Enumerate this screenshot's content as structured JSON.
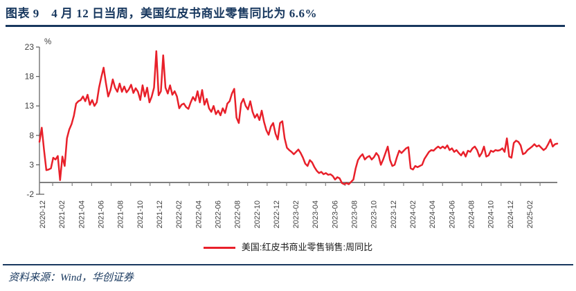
{
  "header": {
    "title": "图表 9　4 月 12 日当周，美国红皮书商业零售同比为 6.6%"
  },
  "footer": {
    "source_label": "资料来源：Wind，华创证券"
  },
  "colors": {
    "accent_navy": "#17375E",
    "series_red": "#E8202A",
    "axis_gray": "#7F7F7F",
    "yaxis_line": "#595959",
    "tick_text": "#404040"
  },
  "chart_data": {
    "type": "line",
    "title": "",
    "xlabel": "",
    "ylabel": "",
    "unit_label": "%",
    "ylim": [
      -2,
      23
    ],
    "yticks": [
      23,
      18,
      13,
      8,
      3,
      -2
    ],
    "grid": false,
    "axis_cross_y": 0,
    "legend_position": "bottom-center",
    "x_tick_labels": [
      "2020-12",
      "2021-02",
      "2021-04",
      "2021-06",
      "2021-08",
      "2021-10",
      "2021-12",
      "2022-02",
      "2022-04",
      "2022-06",
      "2022-08",
      "2022-10",
      "2022-12",
      "2023-02",
      "2023-04",
      "2023-06",
      "2023-08",
      "2023-10",
      "2023-12",
      "2024-02",
      "2024-04",
      "2024-06",
      "2024-08",
      "2024-10",
      "2024-12",
      "2025-02"
    ],
    "legend": [
      {
        "name": "美国:红皮书商业零售销售:周同比",
        "color": "#E8202A"
      }
    ],
    "series": [
      {
        "name": "美国:红皮书商业零售销售:周同比",
        "frequency": "weekly",
        "x_start": "2020-12",
        "x_end": "2025-04",
        "latest_label": "2025-04-12",
        "latest_value": 6.6,
        "values": [
          6.9,
          9.3,
          5.5,
          2.1,
          2.2,
          2.4,
          4.2,
          3.9,
          4.5,
          0.4,
          4.4,
          2.8,
          7.5,
          9.0,
          9.9,
          11.3,
          13.4,
          13.8,
          14.0,
          14.6,
          13.8,
          14.9,
          13.2,
          14.0,
          13.0,
          13.6,
          16.1,
          17.9,
          19.5,
          16.9,
          14.6,
          15.7,
          17.5,
          16.1,
          15.4,
          16.8,
          15.4,
          16.3,
          15.3,
          15.8,
          16.6,
          15.2,
          16.0,
          15.4,
          14.0,
          16.5,
          14.6,
          16.1,
          13.6,
          14.6,
          16.1,
          22.3,
          14.8,
          15.5,
          21.6,
          16.1,
          15.1,
          16.5,
          14.9,
          15.5,
          14.6,
          12.6,
          13.2,
          13.4,
          12.8,
          12.5,
          13.6,
          14.5,
          13.9,
          15.5,
          13.6,
          15.7,
          13.2,
          14.2,
          12.6,
          12.0,
          13.0,
          11.6,
          12.2,
          11.4,
          12.6,
          11.8,
          13.4,
          13.8,
          15.1,
          15.9,
          11.0,
          10.1,
          13.4,
          14.2,
          13.0,
          12.4,
          13.8,
          12.0,
          11.0,
          11.6,
          10.6,
          12.2,
          10.3,
          8.9,
          8.1,
          9.5,
          10.1,
          8.3,
          7.3,
          10.1,
          10.4,
          7.5,
          5.9,
          5.5,
          5.2,
          4.8,
          5.2,
          5.6,
          5.0,
          4.2,
          3.2,
          2.8,
          3.8,
          3.4,
          2.6,
          2.0,
          1.6,
          1.8,
          1.4,
          1.6,
          1.3,
          1.4,
          1.1,
          0.5,
          0.9,
          0.7,
          -0.1,
          -0.3,
          -0.1,
          -0.3,
          0.1,
          0.5,
          2.4,
          3.8,
          4.4,
          4.8,
          3.9,
          4.3,
          4.5,
          3.9,
          4.3,
          5.0,
          4.5,
          3.0,
          3.9,
          5.0,
          6.1,
          3.8,
          2.8,
          3.0,
          4.3,
          5.4,
          5.0,
          5.4,
          5.8,
          6.0,
          2.4,
          2.2,
          2.8,
          2.6,
          2.8,
          3.0,
          4.0,
          4.6,
          5.2,
          5.5,
          5.4,
          5.8,
          6.1,
          5.8,
          6.1,
          5.8,
          6.3,
          5.5,
          5.8,
          5.2,
          5.5,
          5.0,
          4.6,
          5.2,
          4.4,
          5.4,
          5.2,
          5.8,
          6.1,
          5.5,
          4.4,
          5.0,
          6.1,
          4.4,
          4.6,
          5.4,
          5.2,
          5.5,
          5.4,
          5.5,
          5.8,
          5.2,
          7.5,
          4.4,
          4.2,
          6.7,
          7.1,
          6.9,
          6.3,
          4.8,
          5.0,
          5.5,
          5.8,
          6.1,
          6.5,
          6.1,
          6.3,
          5.9,
          5.5,
          5.8,
          6.5,
          7.3,
          6.1,
          6.5,
          6.6
        ]
      }
    ]
  }
}
